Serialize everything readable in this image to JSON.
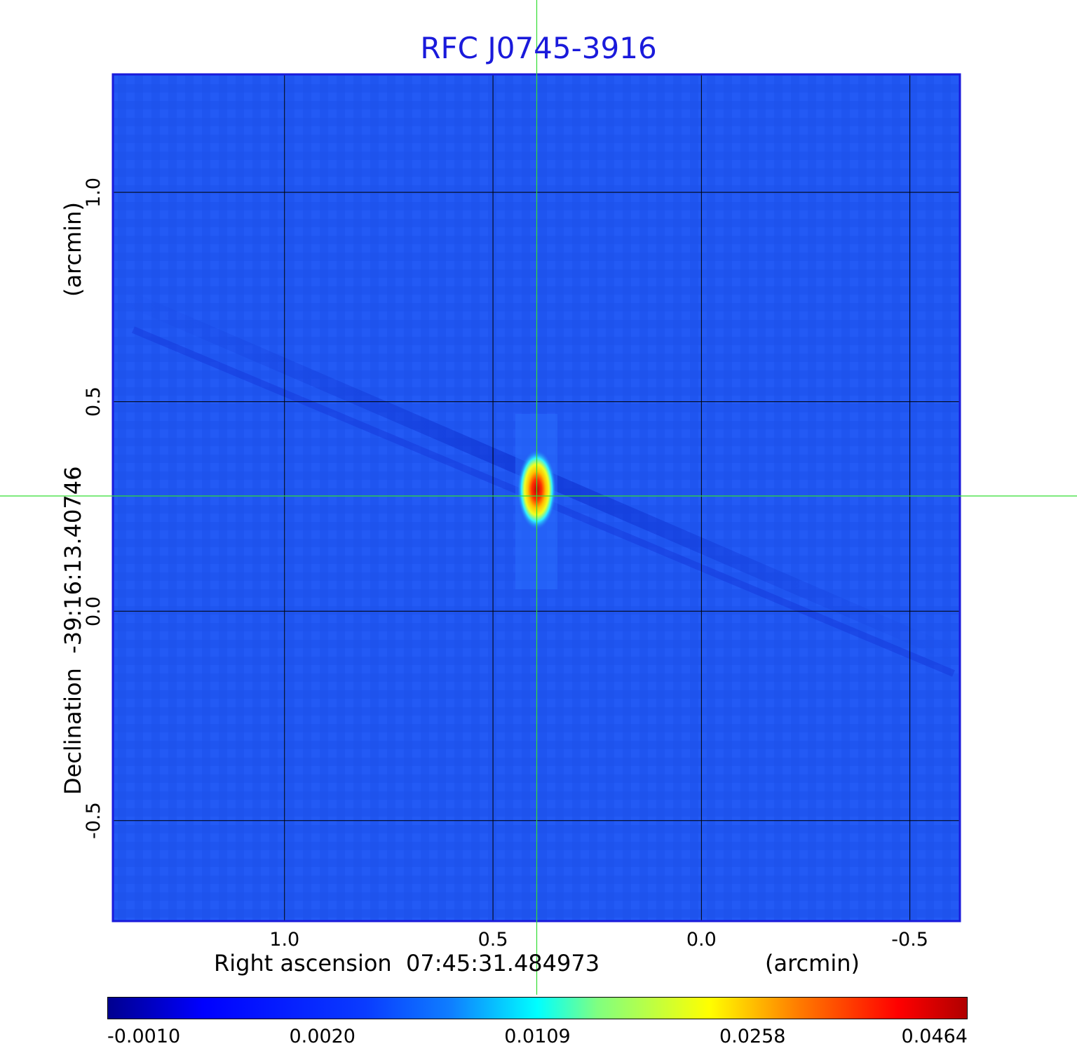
{
  "chart_data": {
    "type": "heatmap",
    "title": "RFC J0745-3916",
    "xlabel": "Right ascension  07:45:31.484973",
    "xlabel_unit": "(arcmin)",
    "ylabel": "Declination  -39:16:13.40746",
    "ylabel_unit": "(arcmin)",
    "x_ticks": [
      "1.0",
      "0.5",
      "0.0",
      "-0.5"
    ],
    "x_tick_values": [
      1.0,
      0.5,
      0.0,
      -0.5
    ],
    "y_ticks": [
      "1.0",
      "0.5",
      "0.0",
      "-0.5"
    ],
    "y_tick_values": [
      1.0,
      0.5,
      0.0,
      -0.5
    ],
    "xlim": [
      1.41,
      -0.62
    ],
    "ylim": [
      -0.74,
      1.28
    ],
    "grid": true,
    "colormap": "jet",
    "colorbar_ticks": [
      "-0.0010",
      "0.0020",
      "0.0109",
      "0.0258",
      "0.0464"
    ],
    "colorbar_values": [
      -0.001,
      0.002,
      0.0109,
      0.0258,
      0.0464
    ],
    "colorbar_placement": "bottom",
    "crosshair": {
      "x": 0.395,
      "y": 0.275,
      "color": "#33dd33"
    },
    "source_peak": {
      "x": 0.395,
      "y": 0.29,
      "value": 0.0464
    },
    "background_color": "#1f55f0"
  }
}
